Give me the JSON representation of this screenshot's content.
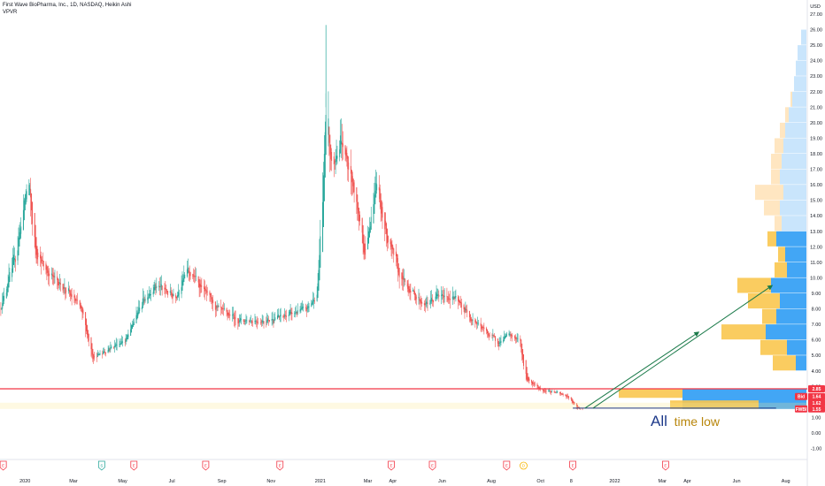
{
  "header": {
    "title": "First Wave BioPharma, Inc., 1D, NASDAQ, Heikin Ashi",
    "indicator": "VPVR"
  },
  "currency": "USD",
  "annotation": {
    "part1": "All",
    "part2": "time low"
  },
  "price_tags": [
    {
      "label": "",
      "value": "2.85",
      "color": "#f23645"
    },
    {
      "label": "Bid",
      "value": "1.64",
      "color": "#f23645"
    },
    {
      "label": "",
      "value": "1.62",
      "color": "#f23645"
    },
    {
      "label": "FWBI",
      "value": "1.55",
      "color": "#f23645"
    }
  ],
  "colors": {
    "up": "#26a69a",
    "down": "#ef5350",
    "vp_up": "#2196f3",
    "vp_down": "#ffc107",
    "support": "#f23645",
    "arrow": "#1b7a4a"
  },
  "chart_data": {
    "type": "candlestick",
    "title": "First Wave BioPharma, Inc., 1D, NASDAQ, Heikin Ashi",
    "ylim": [
      -1.0,
      27.0
    ],
    "y_ticks": [
      -1.0,
      0.0,
      1.0,
      2.0,
      3.0,
      4.0,
      5.0,
      6.0,
      7.0,
      8.0,
      9.0,
      10.0,
      11.0,
      12.0,
      13.0,
      14.0,
      15.0,
      16.0,
      17.0,
      18.0,
      19.0,
      20.0,
      21.0,
      22.0,
      23.0,
      24.0,
      25.0,
      26.0,
      27.0
    ],
    "x_ticks": [
      "2020",
      "Mar",
      "May",
      "Jul",
      "Sep",
      "Nov",
      "2021",
      "Mar",
      "Apr",
      "Jun",
      "Aug",
      "Oct",
      "8",
      "2022",
      "Mar",
      "Apr",
      "Jun",
      "Aug"
    ],
    "price_path": [
      {
        "date": "2019-12-01",
        "price": 8.0
      },
      {
        "date": "2019-12-20",
        "price": 11.5
      },
      {
        "date": "2020-01-05",
        "price": 16.5
      },
      {
        "date": "2020-01-12",
        "price": 12.0
      },
      {
        "date": "2020-01-25",
        "price": 10.5
      },
      {
        "date": "2020-02-15",
        "price": 9.5
      },
      {
        "date": "2020-03-10",
        "price": 8.0
      },
      {
        "date": "2020-03-25",
        "price": 4.8
      },
      {
        "date": "2020-04-15",
        "price": 5.5
      },
      {
        "date": "2020-05-05",
        "price": 6.0
      },
      {
        "date": "2020-05-25",
        "price": 8.5
      },
      {
        "date": "2020-06-10",
        "price": 9.5
      },
      {
        "date": "2020-07-05",
        "price": 8.8
      },
      {
        "date": "2020-07-20",
        "price": 10.5
      },
      {
        "date": "2020-08-05",
        "price": 9.5
      },
      {
        "date": "2020-08-25",
        "price": 8.0
      },
      {
        "date": "2020-09-20",
        "price": 7.3
      },
      {
        "date": "2020-10-20",
        "price": 7.2
      },
      {
        "date": "2020-11-15",
        "price": 7.5
      },
      {
        "date": "2020-12-15",
        "price": 8.0
      },
      {
        "date": "2020-12-28",
        "price": 9.0
      },
      {
        "date": "2021-01-03",
        "price": 15.0
      },
      {
        "date": "2021-01-08",
        "price": 21.0
      },
      {
        "date": "2021-01-15",
        "price": 17.0
      },
      {
        "date": "2021-01-25",
        "price": 19.0
      },
      {
        "date": "2021-02-10",
        "price": 16.0
      },
      {
        "date": "2021-02-25",
        "price": 11.5
      },
      {
        "date": "2021-03-10",
        "price": 16.0
      },
      {
        "date": "2021-03-25",
        "price": 12.5
      },
      {
        "date": "2021-04-10",
        "price": 10.0
      },
      {
        "date": "2021-04-25",
        "price": 9.0
      },
      {
        "date": "2021-05-10",
        "price": 8.2
      },
      {
        "date": "2021-05-25",
        "price": 8.8
      },
      {
        "date": "2021-06-15",
        "price": 8.7
      },
      {
        "date": "2021-07-05",
        "price": 7.5
      },
      {
        "date": "2021-07-25",
        "price": 6.5
      },
      {
        "date": "2021-08-10",
        "price": 5.8
      },
      {
        "date": "2021-08-20",
        "price": 6.3
      },
      {
        "date": "2021-09-05",
        "price": 6.0
      },
      {
        "date": "2021-09-12",
        "price": 3.5
      },
      {
        "date": "2021-10-01",
        "price": 2.8
      },
      {
        "date": "2021-10-20",
        "price": 2.6
      },
      {
        "date": "2021-11-05",
        "price": 2.3
      },
      {
        "date": "2021-11-15",
        "price": 1.6
      },
      {
        "date": "2021-11-22",
        "price": 1.55
      }
    ],
    "volume_profile": [
      {
        "price": 4.5,
        "up": 12,
        "down": 26
      },
      {
        "price": 5.5,
        "up": 22,
        "down": 30
      },
      {
        "price": 6.5,
        "up": 46,
        "down": 50
      },
      {
        "price": 7.5,
        "up": 34,
        "down": 16
      },
      {
        "price": 8.5,
        "up": 30,
        "down": 36
      },
      {
        "price": 9.5,
        "up": 40,
        "down": 38
      },
      {
        "price": 10.5,
        "up": 22,
        "down": 14
      },
      {
        "price": 11.5,
        "up": 24,
        "down": 8
      },
      {
        "price": 12.5,
        "up": 34,
        "down": 10
      },
      {
        "price": 13.5,
        "up": 28,
        "down": 8
      },
      {
        "price": 14.5,
        "up": 30,
        "down": 18
      },
      {
        "price": 15.5,
        "up": 26,
        "down": 32
      },
      {
        "price": 16.5,
        "up": 30,
        "down": 10
      },
      {
        "price": 17.5,
        "up": 28,
        "down": 12
      },
      {
        "price": 18.5,
        "up": 26,
        "down": 10
      },
      {
        "price": 19.5,
        "up": 24,
        "down": 6
      },
      {
        "price": 20.5,
        "up": 20,
        "down": 4
      },
      {
        "price": 21.5,
        "up": 16,
        "down": 2
      },
      {
        "price": 22.5,
        "up": 14,
        "down": 0
      },
      {
        "price": 23.5,
        "up": 12,
        "down": 0
      },
      {
        "price": 24.5,
        "up": 10,
        "down": 0
      },
      {
        "price": 25.5,
        "up": 6,
        "down": 0
      }
    ],
    "volume_profile_low": {
      "price_low": 1.55,
      "price_high": 2.85,
      "up": 140,
      "down": 72
    },
    "support_line": 2.85,
    "arrows": [
      {
        "from": {
          "date": "2021-11-25",
          "price": 1.6
        },
        "to": {
          "date": "2022-04-15",
          "price": 6.5
        }
      },
      {
        "from": {
          "date": "2021-12-05",
          "price": 1.6
        },
        "to": {
          "date": "2022-07-15",
          "price": 9.5
        }
      }
    ],
    "events": [
      {
        "date": "2019-12-05",
        "type": "E"
      },
      {
        "date": "2020-04-05",
        "type": "S"
      },
      {
        "date": "2020-05-15",
        "type": "E"
      },
      {
        "date": "2020-08-12",
        "type": "E"
      },
      {
        "date": "2020-11-12",
        "type": "E"
      },
      {
        "date": "2021-03-30",
        "type": "E"
      },
      {
        "date": "2021-05-20",
        "type": "E"
      },
      {
        "date": "2021-08-20",
        "type": "E"
      },
      {
        "date": "2021-09-10",
        "type": "D"
      },
      {
        "date": "2021-11-10",
        "type": "E"
      },
      {
        "date": "2022-03-05",
        "type": "E"
      }
    ]
  }
}
